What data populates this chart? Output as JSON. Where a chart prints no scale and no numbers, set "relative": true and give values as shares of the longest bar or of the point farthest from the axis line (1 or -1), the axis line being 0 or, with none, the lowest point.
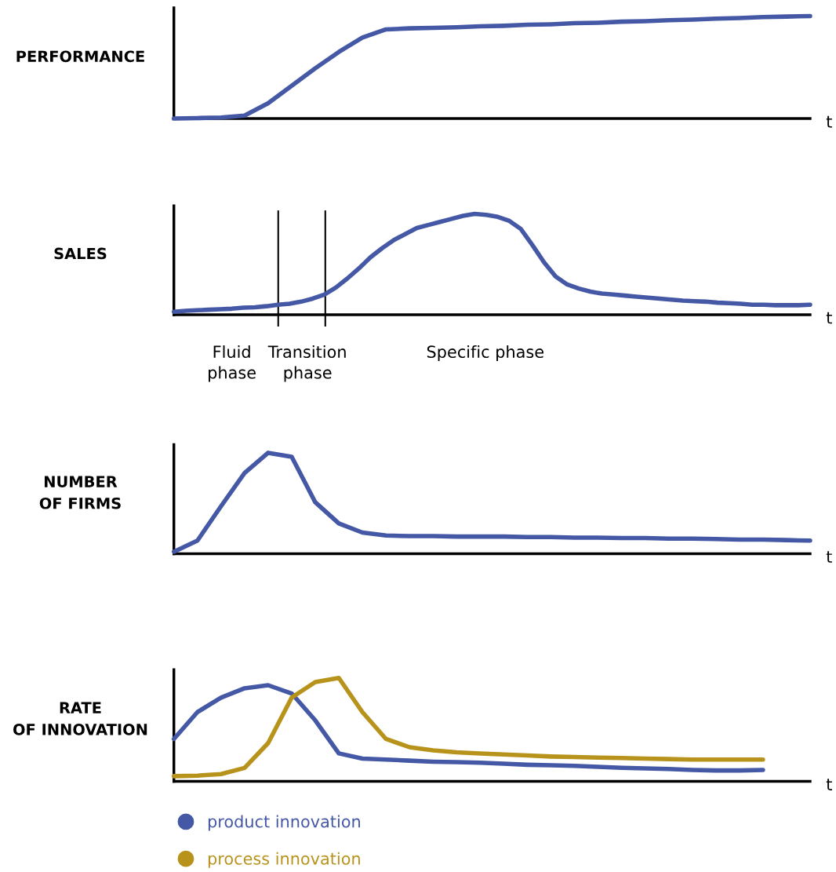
{
  "chart_data": [
    {
      "type": "line",
      "relative": true,
      "ylabel": "PERFORMANCE",
      "xlabel": "t",
      "categories": [
        null,
        null,
        null,
        null,
        null,
        null,
        null,
        null,
        null,
        null,
        null,
        null,
        null,
        null,
        null,
        null,
        null,
        null,
        null,
        null,
        null,
        null,
        null,
        null,
        null,
        null,
        null,
        null
      ],
      "series": [
        {
          "color": "#4458a6",
          "values": [
            0,
            0.005,
            0.01,
            0.03,
            0.15,
            0.32,
            0.49,
            0.65,
            0.79,
            0.87,
            0.88,
            0.885,
            0.89,
            0.9,
            0.905,
            0.915,
            0.92,
            0.93,
            0.935,
            0.945,
            0.95,
            0.96,
            0.965,
            0.975,
            0.98,
            0.99,
            0.995,
            1.0
          ]
        }
      ]
    },
    {
      "type": "line",
      "relative": true,
      "ylabel": "SALES",
      "xlabel": "t",
      "categories": [
        null,
        null,
        null,
        null,
        null,
        null,
        null,
        null,
        null,
        null,
        null,
        null,
        null,
        null,
        null,
        null,
        null,
        null,
        null,
        null,
        null,
        null,
        null,
        null,
        null,
        null,
        null,
        null,
        null,
        null,
        null,
        null,
        null,
        null,
        null,
        null,
        null,
        null,
        null,
        null,
        null,
        null,
        null,
        null,
        null,
        null,
        null,
        null,
        null,
        null,
        null,
        null,
        null,
        null,
        null,
        null
      ],
      "series": [
        {
          "color": "#4458a6",
          "values": [
            0.03,
            0.04,
            0.045,
            0.05,
            0.055,
            0.06,
            0.07,
            0.075,
            0.085,
            0.1,
            0.11,
            0.13,
            0.16,
            0.2,
            0.27,
            0.36,
            0.46,
            0.57,
            0.66,
            0.74,
            0.8,
            0.86,
            0.89,
            0.92,
            0.95,
            0.98,
            1.0,
            0.99,
            0.97,
            0.93,
            0.85,
            0.69,
            0.52,
            0.38,
            0.3,
            0.26,
            0.23,
            0.21,
            0.2,
            0.19,
            0.18,
            0.17,
            0.16,
            0.15,
            0.14,
            0.135,
            0.13,
            0.12,
            0.115,
            0.11,
            0.1,
            0.1,
            0.095,
            0.095,
            0.095,
            0.1
          ]
        }
      ],
      "annotations": [
        "Fluid\nphase",
        "Transition\nphase",
        "Specific phase"
      ]
    },
    {
      "type": "line",
      "relative": true,
      "ylabel": "NUMBER\nOF FIRMS",
      "xlabel": "t",
      "categories": [
        null,
        null,
        null,
        null,
        null,
        null,
        null,
        null,
        null,
        null,
        null,
        null,
        null,
        null,
        null,
        null,
        null,
        null,
        null,
        null,
        null,
        null,
        null,
        null,
        null,
        null,
        null,
        null
      ],
      "series": [
        {
          "color": "#4458a6",
          "values": [
            0.02,
            0.13,
            0.47,
            0.8,
            1.0,
            0.96,
            0.51,
            0.3,
            0.21,
            0.18,
            0.175,
            0.175,
            0.17,
            0.17,
            0.17,
            0.165,
            0.165,
            0.16,
            0.16,
            0.155,
            0.155,
            0.15,
            0.15,
            0.145,
            0.14,
            0.14,
            0.135,
            0.13
          ]
        }
      ]
    },
    {
      "type": "line",
      "relative": true,
      "ylabel": "RATE\nOF INNOVATION",
      "xlabel": "t",
      "legend": "bottom",
      "categories": [
        null,
        null,
        null,
        null,
        null,
        null,
        null,
        null,
        null,
        null,
        null,
        null,
        null,
        null,
        null,
        null,
        null,
        null,
        null,
        null,
        null,
        null,
        null,
        null,
        null,
        null,
        null,
        null
      ],
      "series": [
        {
          "name": "product innovation",
          "color": "#4458a6",
          "values": [
            0.41,
            0.67,
            0.81,
            0.9,
            0.93,
            0.85,
            0.59,
            0.27,
            0.22,
            0.21,
            0.2,
            0.19,
            0.185,
            0.18,
            0.17,
            0.16,
            0.155,
            0.15,
            0.14,
            0.13,
            0.125,
            0.12,
            0.11,
            0.105,
            0.105,
            0.11,
            null,
            null
          ]
        },
        {
          "name": "process innovation",
          "color": "#b8931c",
          "values": [
            0.05,
            0.055,
            0.07,
            0.13,
            0.37,
            0.81,
            0.96,
            1.0,
            0.67,
            0.41,
            0.33,
            0.3,
            0.28,
            0.27,
            0.26,
            0.25,
            0.24,
            0.235,
            0.23,
            0.225,
            0.22,
            0.215,
            0.21,
            0.21,
            0.21,
            0.21,
            null,
            null
          ]
        }
      ]
    }
  ]
}
